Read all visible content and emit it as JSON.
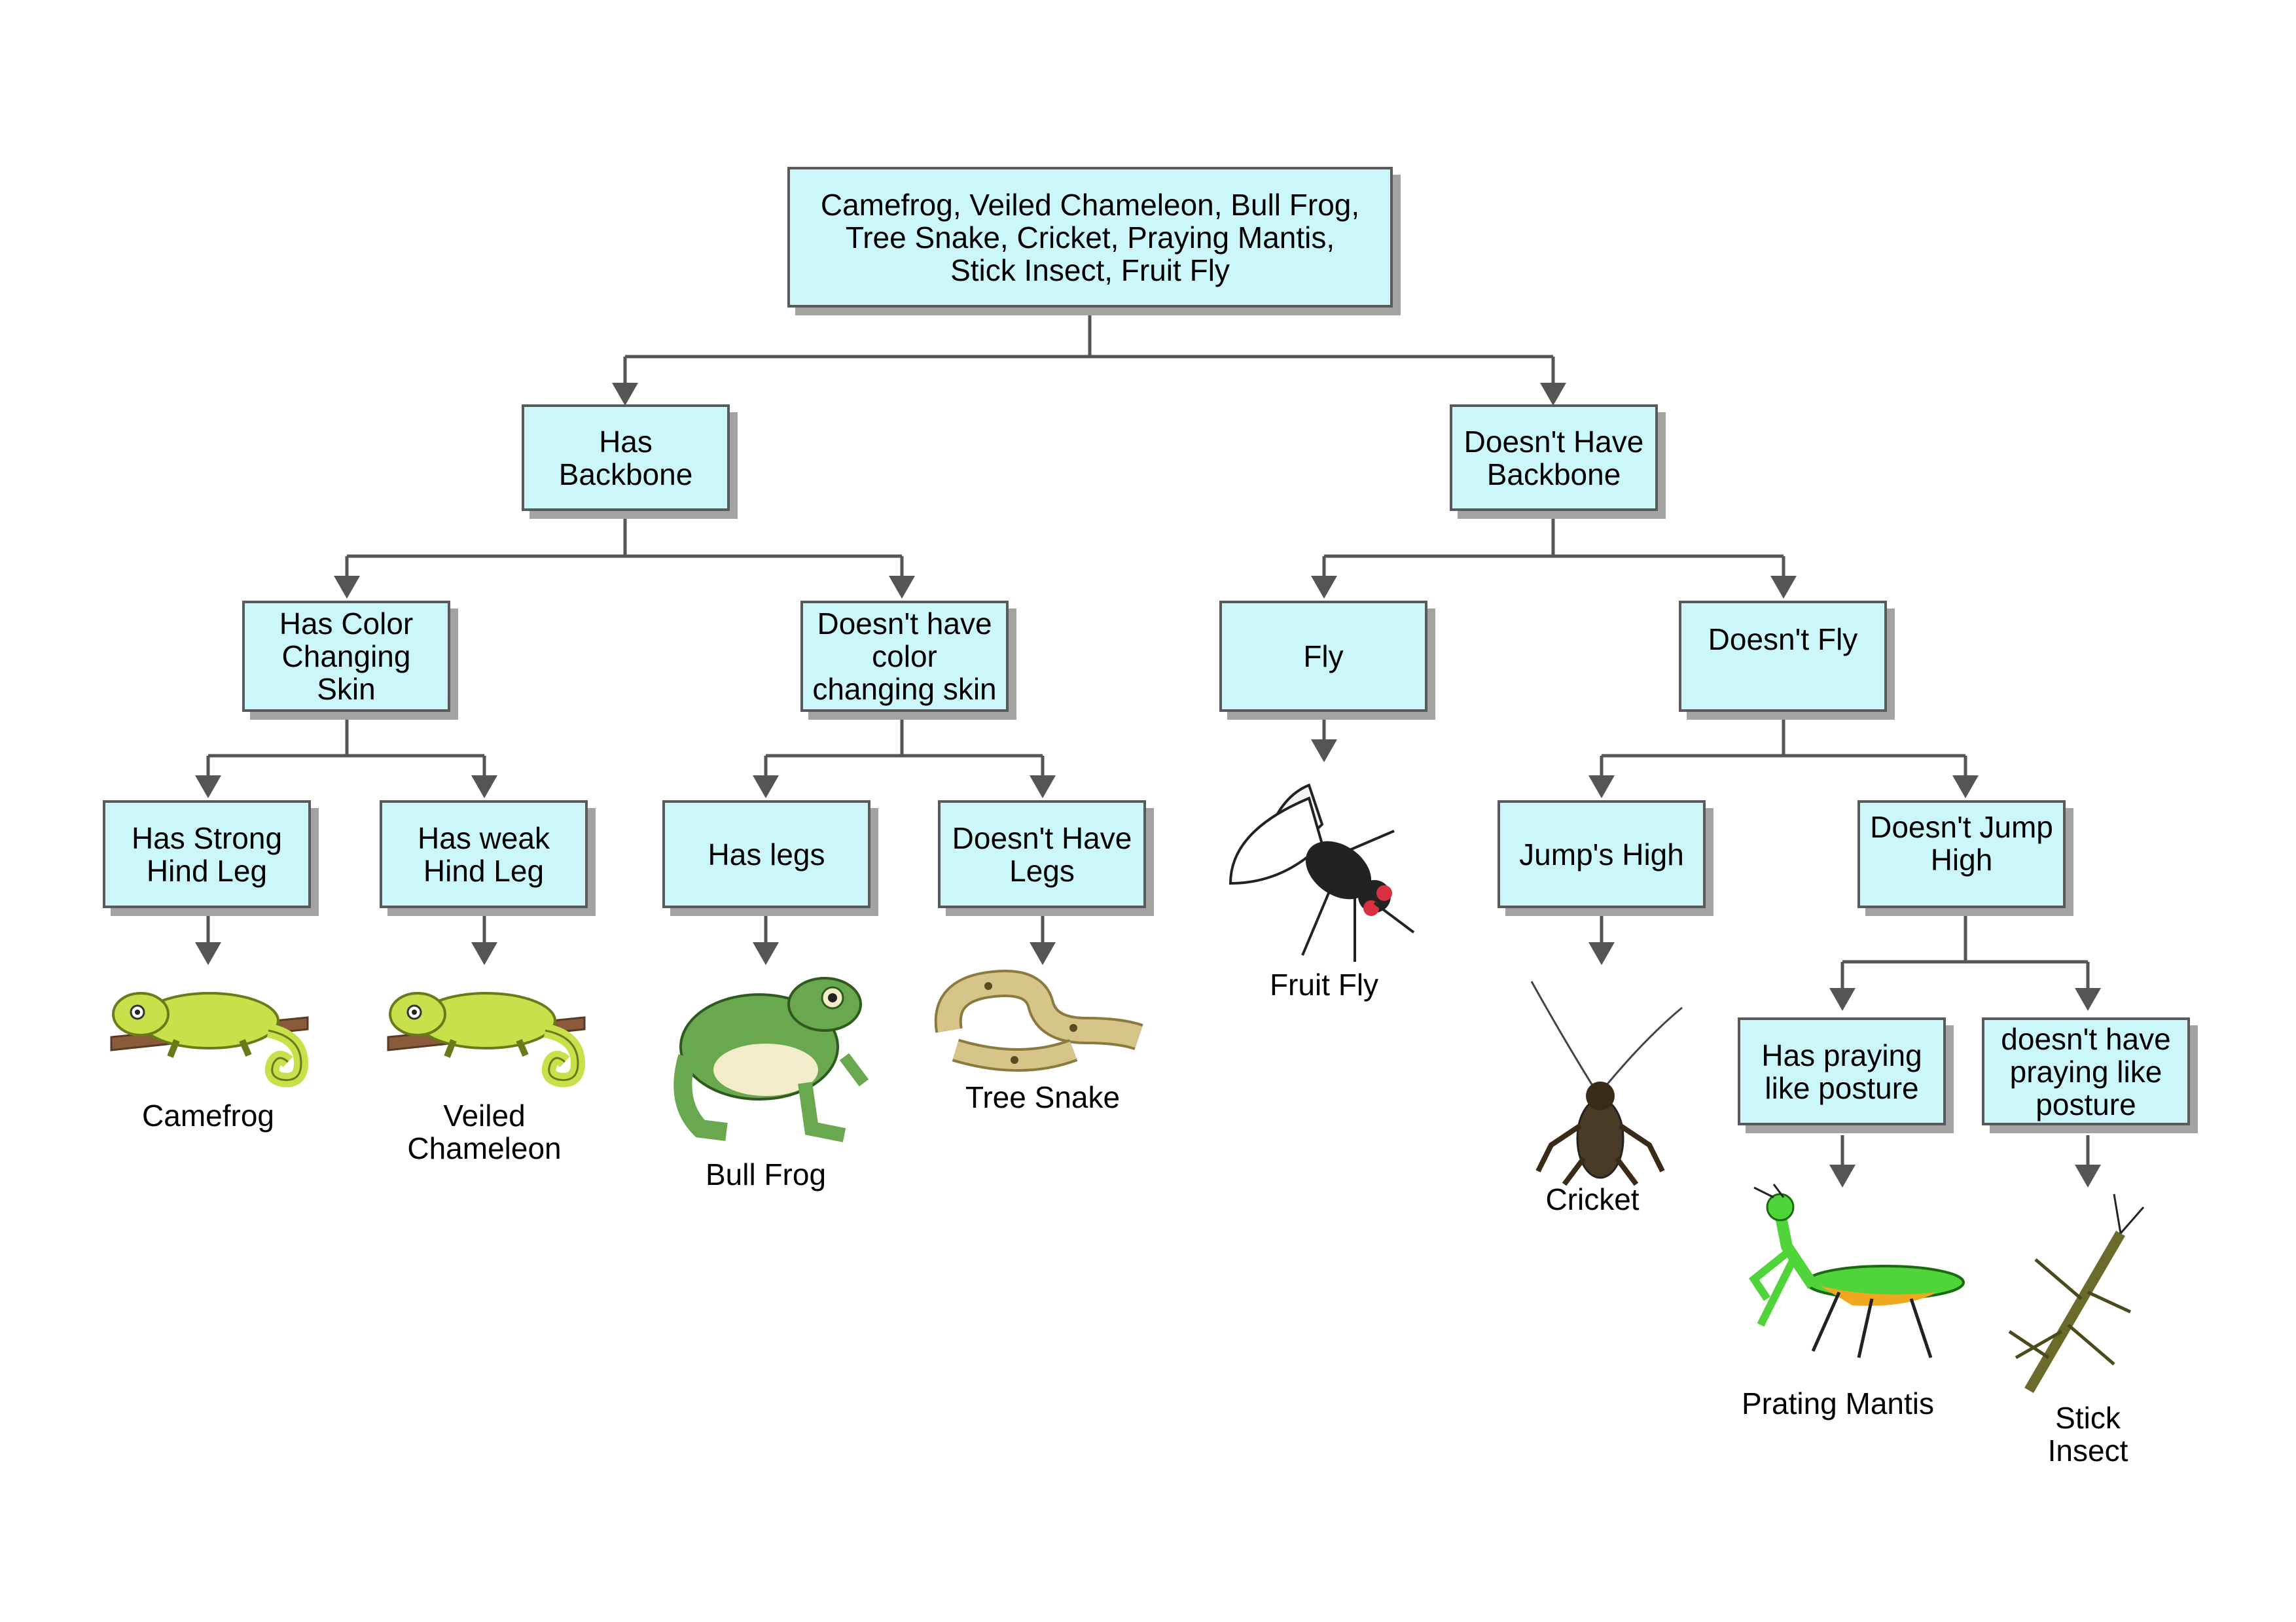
{
  "root": {
    "label": "Camefrog, Veiled Chameleon, Bull Frog,\nTree Snake, Cricket, Praying Mantis,\nStick Insect, Fruit Fly"
  },
  "level1": {
    "has_backbone": "Has\nBackbone",
    "no_backbone": "Doesn't Have\nBackbone"
  },
  "level2": {
    "color_skin": "Has Color\nChanging\nSkin",
    "no_color_skin": "Doesn't have\ncolor\nchanging skin",
    "fly": "Fly",
    "no_fly": "Doesn't Fly"
  },
  "level3": {
    "strong_hind": "Has Strong\nHind Leg",
    "weak_hind": "Has weak\nHind Leg",
    "has_legs": "Has legs",
    "no_legs": "Doesn't Have\nLegs",
    "jumps_high": "Jump's High",
    "no_jump_high": "Doesn't Jump\nHigh"
  },
  "level4": {
    "praying_posture": "Has praying\nlike posture",
    "no_praying_posture": "doesn't have\npraying like\nposture"
  },
  "animals": {
    "camefrog": "Camefrog",
    "veiled_chameleon": "Veiled\nChameleon",
    "bull_frog": "Bull Frog",
    "tree_snake": "Tree Snake",
    "fruit_fly": "Fruit Fly",
    "cricket": "Cricket",
    "praying_mantis": "Prating Mantis",
    "stick_insect": "Stick\nInsect"
  },
  "colors": {
    "box_fill": "#ccf7fa",
    "box_border": "#5a5a5a",
    "connector": "#555555",
    "chameleon": "#c8e04a",
    "frog": "#6aa84f",
    "snake": "#c8b070",
    "mantis": "#4fd43a"
  },
  "icons": [
    "chameleon-icon",
    "frog-icon",
    "snake-icon",
    "fly-icon",
    "cricket-icon",
    "mantis-icon",
    "stick-insect-icon"
  ]
}
